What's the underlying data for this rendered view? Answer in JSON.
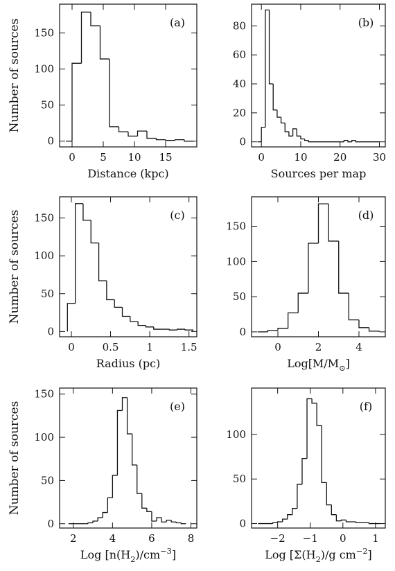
{
  "chart_data": [
    {
      "type": "histogram",
      "panel_label": "(a)",
      "xlabel": "Distance (kpc)",
      "ylabel": "Number of sources",
      "xlim": [
        -2,
        20
      ],
      "ylim": [
        -8,
        190
      ],
      "xticks": [
        0,
        5,
        10,
        15
      ],
      "yticks": [
        0,
        50,
        100,
        150
      ],
      "grid": false,
      "bins": [
        {
          "x0": -1.0,
          "x1": 0.0,
          "value": 0
        },
        {
          "x0": 0.0,
          "x1": 1.5,
          "value": 108
        },
        {
          "x0": 1.5,
          "x1": 3.0,
          "value": 179
        },
        {
          "x0": 3.0,
          "x1": 4.5,
          "value": 160
        },
        {
          "x0": 4.5,
          "x1": 6.0,
          "value": 114
        },
        {
          "x0": 6.0,
          "x1": 7.5,
          "value": 20
        },
        {
          "x0": 7.5,
          "x1": 9.0,
          "value": 13
        },
        {
          "x0": 9.0,
          "x1": 10.5,
          "value": 7
        },
        {
          "x0": 10.5,
          "x1": 12.0,
          "value": 14
        },
        {
          "x0": 12.0,
          "x1": 13.5,
          "value": 4
        },
        {
          "x0": 13.5,
          "x1": 15.0,
          "value": 2
        },
        {
          "x0": 15.0,
          "x1": 16.5,
          "value": 1
        },
        {
          "x0": 16.5,
          "x1": 18.0,
          "value": 2
        },
        {
          "x0": 18.0,
          "x1": 19.5,
          "value": 0
        }
      ]
    },
    {
      "type": "histogram",
      "panel_label": "(b)",
      "xlabel": "Sources per map",
      "ylabel": "",
      "xlim": [
        -2.5,
        31.5
      ],
      "ylim": [
        -3.5,
        95
      ],
      "xticks": [
        0,
        10,
        20,
        30
      ],
      "yticks": [
        0,
        20,
        40,
        60,
        80
      ],
      "grid": false,
      "bins": [
        {
          "x0": -1,
          "x1": 0,
          "value": 0
        },
        {
          "x0": 0,
          "x1": 1,
          "value": 10
        },
        {
          "x0": 1,
          "x1": 2,
          "value": 91
        },
        {
          "x0": 2,
          "x1": 3,
          "value": 40
        },
        {
          "x0": 3,
          "x1": 4,
          "value": 22
        },
        {
          "x0": 4,
          "x1": 5,
          "value": 17
        },
        {
          "x0": 5,
          "x1": 6,
          "value": 13
        },
        {
          "x0": 6,
          "x1": 7,
          "value": 7
        },
        {
          "x0": 7,
          "x1": 8,
          "value": 4
        },
        {
          "x0": 8,
          "x1": 9,
          "value": 9
        },
        {
          "x0": 9,
          "x1": 10,
          "value": 4
        },
        {
          "x0": 10,
          "x1": 11,
          "value": 2
        },
        {
          "x0": 11,
          "x1": 12,
          "value": 1
        },
        {
          "x0": 12,
          "x1": 21,
          "value": 0
        },
        {
          "x0": 21,
          "x1": 22,
          "value": 1
        },
        {
          "x0": 22,
          "x1": 23,
          "value": 0
        },
        {
          "x0": 23,
          "x1": 24,
          "value": 1
        },
        {
          "x0": 24,
          "x1": 30,
          "value": 0
        }
      ]
    },
    {
      "type": "histogram",
      "panel_label": "(c)",
      "xlabel": "Radius (pc)",
      "ylabel": "Number of sources",
      "xlim": [
        -0.15,
        1.6
      ],
      "ylim": [
        -7,
        178
      ],
      "xticks": [
        0,
        0.5,
        1,
        1.5
      ],
      "xticklabels": [
        "0",
        "0.5",
        "1",
        "1.5"
      ],
      "yticks": [
        0,
        50,
        100,
        150
      ],
      "grid": false,
      "bins": [
        {
          "x0": -0.05,
          "x1": 0.05,
          "value": 37
        },
        {
          "x0": 0.05,
          "x1": 0.15,
          "value": 169
        },
        {
          "x0": 0.15,
          "x1": 0.25,
          "value": 147
        },
        {
          "x0": 0.25,
          "x1": 0.35,
          "value": 117
        },
        {
          "x0": 0.35,
          "x1": 0.45,
          "value": 67
        },
        {
          "x0": 0.45,
          "x1": 0.55,
          "value": 42
        },
        {
          "x0": 0.55,
          "x1": 0.65,
          "value": 32
        },
        {
          "x0": 0.65,
          "x1": 0.75,
          "value": 20
        },
        {
          "x0": 0.75,
          "x1": 0.85,
          "value": 13
        },
        {
          "x0": 0.85,
          "x1": 0.95,
          "value": 8
        },
        {
          "x0": 0.95,
          "x1": 1.05,
          "value": 6
        },
        {
          "x0": 1.05,
          "x1": 1.15,
          "value": 3
        },
        {
          "x0": 1.15,
          "x1": 1.25,
          "value": 3
        },
        {
          "x0": 1.25,
          "x1": 1.35,
          "value": 2
        },
        {
          "x0": 1.35,
          "x1": 1.45,
          "value": 3
        },
        {
          "x0": 1.45,
          "x1": 1.55,
          "value": 2
        }
      ]
    },
    {
      "type": "histogram",
      "panel_label": "(d)",
      "xlabel": "Log[M/M⊙]",
      "ylabel": "",
      "xlim": [
        -1.3,
        5.3
      ],
      "ylim": [
        -7,
        192
      ],
      "xticks": [
        0,
        2,
        4
      ],
      "yticks": [
        0,
        50,
        100,
        150
      ],
      "grid": false,
      "bins": [
        {
          "x0": -1.0,
          "x1": -0.5,
          "value": 0
        },
        {
          "x0": -0.5,
          "x1": 0.0,
          "value": 2
        },
        {
          "x0": 0.0,
          "x1": 0.5,
          "value": 5
        },
        {
          "x0": 0.5,
          "x1": 1.0,
          "value": 27
        },
        {
          "x0": 1.0,
          "x1": 1.5,
          "value": 55
        },
        {
          "x0": 1.5,
          "x1": 2.0,
          "value": 126
        },
        {
          "x0": 2.0,
          "x1": 2.5,
          "value": 182
        },
        {
          "x0": 2.5,
          "x1": 3.0,
          "value": 129
        },
        {
          "x0": 3.0,
          "x1": 3.5,
          "value": 55
        },
        {
          "x0": 3.5,
          "x1": 4.0,
          "value": 17
        },
        {
          "x0": 4.0,
          "x1": 4.5,
          "value": 6
        },
        {
          "x0": 4.5,
          "x1": 5.0,
          "value": 1
        }
      ]
    },
    {
      "type": "histogram",
      "panel_label": "(e)",
      "xlabel": "Log [n(H2)/cm−3]",
      "ylabel": "Number of sources",
      "xlim": [
        1.3,
        8.3
      ],
      "ylim": [
        -5,
        157
      ],
      "xticks": [
        2,
        4,
        6,
        8
      ],
      "yticks": [
        0,
        50,
        100,
        150
      ],
      "grid": false,
      "bins": [
        {
          "x0": 1.75,
          "x1": 2.75,
          "value": 0
        },
        {
          "x0": 2.75,
          "x1": 3.0,
          "value": 1
        },
        {
          "x0": 3.0,
          "x1": 3.25,
          "value": 3
        },
        {
          "x0": 3.25,
          "x1": 3.5,
          "value": 7
        },
        {
          "x0": 3.5,
          "x1": 3.75,
          "value": 13
        },
        {
          "x0": 3.75,
          "x1": 4.0,
          "value": 30
        },
        {
          "x0": 4.0,
          "x1": 4.25,
          "value": 56
        },
        {
          "x0": 4.25,
          "x1": 4.5,
          "value": 131
        },
        {
          "x0": 4.5,
          "x1": 4.75,
          "value": 146
        },
        {
          "x0": 4.75,
          "x1": 5.0,
          "value": 104
        },
        {
          "x0": 5.0,
          "x1": 5.25,
          "value": 68
        },
        {
          "x0": 5.25,
          "x1": 5.5,
          "value": 35
        },
        {
          "x0": 5.5,
          "x1": 5.75,
          "value": 18
        },
        {
          "x0": 5.75,
          "x1": 6.0,
          "value": 14
        },
        {
          "x0": 6.0,
          "x1": 6.25,
          "value": 3
        },
        {
          "x0": 6.25,
          "x1": 6.5,
          "value": 7
        },
        {
          "x0": 6.5,
          "x1": 6.75,
          "value": 2
        },
        {
          "x0": 6.75,
          "x1": 7.0,
          "value": 4
        },
        {
          "x0": 7.0,
          "x1": 7.25,
          "value": 2
        },
        {
          "x0": 7.25,
          "x1": 7.5,
          "value": 1
        },
        {
          "x0": 7.5,
          "x1": 7.75,
          "value": 0
        }
      ]
    },
    {
      "type": "histogram",
      "panel_label": "(f)",
      "xlabel": "Log [Σ(H2)/g cm−2]",
      "ylabel": "",
      "xlim": [
        -2.8,
        1.3
      ],
      "ylim": [
        -5,
        152
      ],
      "xticks": [
        -2,
        -1,
        0,
        1
      ],
      "xticklabels": [
        "−2",
        "−1",
        "0",
        "1"
      ],
      "yticks": [
        0,
        50,
        100
      ],
      "grid": false,
      "bins": [
        {
          "x0": -2.6,
          "x1": -2.15,
          "value": 0
        },
        {
          "x0": -2.15,
          "x1": -2.0,
          "value": 1
        },
        {
          "x0": -2.0,
          "x1": -1.85,
          "value": 2
        },
        {
          "x0": -1.85,
          "x1": -1.7,
          "value": 5
        },
        {
          "x0": -1.7,
          "x1": -1.55,
          "value": 10
        },
        {
          "x0": -1.55,
          "x1": -1.4,
          "value": 17
        },
        {
          "x0": -1.4,
          "x1": -1.25,
          "value": 44
        },
        {
          "x0": -1.25,
          "x1": -1.1,
          "value": 73
        },
        {
          "x0": -1.1,
          "x1": -0.95,
          "value": 140
        },
        {
          "x0": -0.95,
          "x1": -0.8,
          "value": 135
        },
        {
          "x0": -0.8,
          "x1": -0.65,
          "value": 110
        },
        {
          "x0": -0.65,
          "x1": -0.5,
          "value": 46
        },
        {
          "x0": -0.5,
          "x1": -0.35,
          "value": 21
        },
        {
          "x0": -0.35,
          "x1": -0.2,
          "value": 10
        },
        {
          "x0": -0.2,
          "x1": -0.05,
          "value": 3
        },
        {
          "x0": -0.05,
          "x1": 0.1,
          "value": 4
        },
        {
          "x0": 0.1,
          "x1": 0.4,
          "value": 2
        },
        {
          "x0": 0.4,
          "x1": 0.8,
          "value": 1
        },
        {
          "x0": 0.8,
          "x1": 1.15,
          "value": 0
        }
      ]
    }
  ]
}
